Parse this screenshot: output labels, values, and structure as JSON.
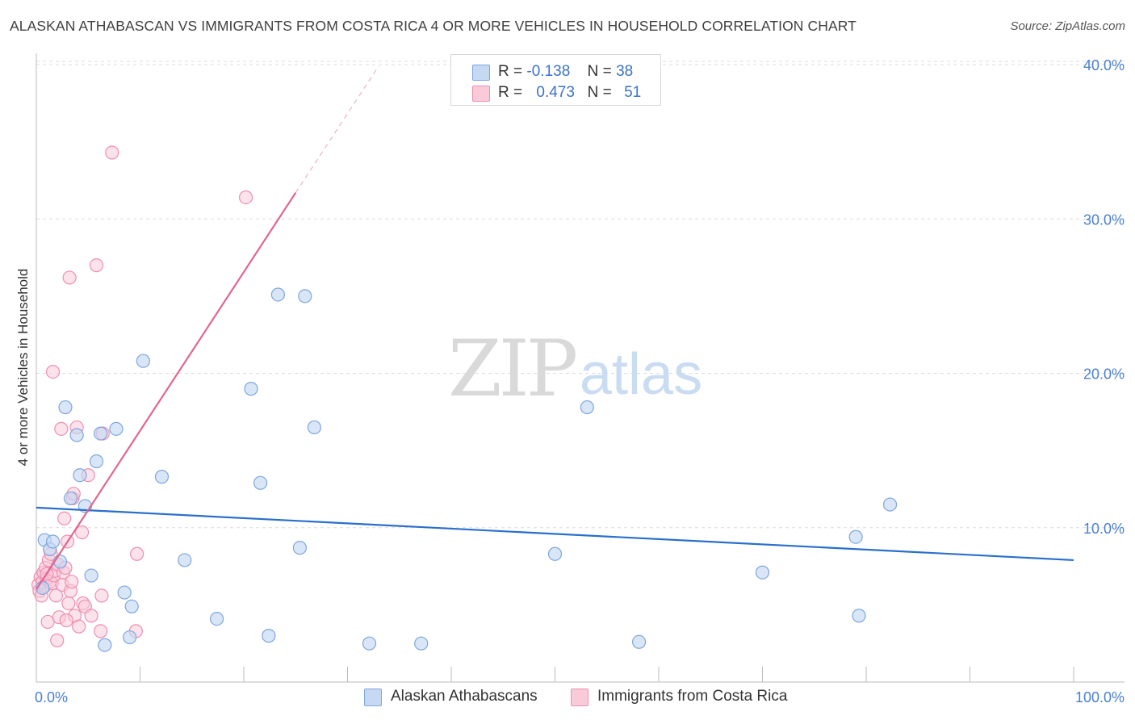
{
  "header": {
    "title": "ALASKAN ATHABASCAN VS IMMIGRANTS FROM COSTA RICA 4 OR MORE VEHICLES IN HOUSEHOLD CORRELATION CHART",
    "source": "Source: ZipAtlas.com"
  },
  "watermark": {
    "zip": "ZIP",
    "atlas": "atlas"
  },
  "legend": {
    "rows": [
      {
        "r_label": "R =",
        "r_value": "-0.138",
        "n_label": "N =",
        "n_value": "38",
        "color": "#a9c6ef"
      },
      {
        "r_label": "R =",
        "r_value": "0.473",
        "n_label": "N =",
        "n_value": "51",
        "color": "#f7b6cb"
      }
    ]
  },
  "colors": {
    "blue_fill": "#c5d9f3",
    "blue_stroke": "#7ea6de",
    "blue_line": "#2a6fcb",
    "pink_fill": "#f9cbd9",
    "pink_stroke": "#ee8fb0",
    "pink_line": "#e2668f"
  },
  "chart_data": {
    "type": "scatter",
    "title": "ALASKAN ATHABASCAN VS IMMIGRANTS FROM COSTA RICA 4 OR MORE VEHICLES IN HOUSEHOLD CORRELATION CHART",
    "xlabel": "",
    "ylabel": "4 or more Vehicles in Household",
    "xlim": [
      0,
      100
    ],
    "ylim": [
      0,
      40
    ],
    "x_tick_labels": [
      "0.0%",
      "100.0%"
    ],
    "y_ticks": [
      10,
      20,
      30,
      40
    ],
    "y_tick_labels": [
      "10.0%",
      "20.0%",
      "30.0%",
      "40.0%"
    ],
    "grid": true,
    "legend_position": "top-center",
    "series": [
      {
        "name": "Alaskan Athabascans",
        "r": -0.138,
        "n": 38,
        "trend": {
          "x": [
            0,
            100
          ],
          "y": [
            11.3,
            7.9
          ]
        },
        "points": [
          [
            0.6,
            6.1
          ],
          [
            0.8,
            9.2
          ],
          [
            1.3,
            8.6
          ],
          [
            1.6,
            9.1
          ],
          [
            2.3,
            7.8
          ],
          [
            2.8,
            17.8
          ],
          [
            3.3,
            11.9
          ],
          [
            3.9,
            16.0
          ],
          [
            4.2,
            13.4
          ],
          [
            4.7,
            11.4
          ],
          [
            5.3,
            6.9
          ],
          [
            5.8,
            14.3
          ],
          [
            6.2,
            16.1
          ],
          [
            6.6,
            2.4
          ],
          [
            7.7,
            16.4
          ],
          [
            8.5,
            5.8
          ],
          [
            9.0,
            2.9
          ],
          [
            9.2,
            4.9
          ],
          [
            10.3,
            20.8
          ],
          [
            12.1,
            13.3
          ],
          [
            14.3,
            7.9
          ],
          [
            17.4,
            4.1
          ],
          [
            20.7,
            19.0
          ],
          [
            21.6,
            12.9
          ],
          [
            22.4,
            3.0
          ],
          [
            23.3,
            25.1
          ],
          [
            25.4,
            8.7
          ],
          [
            25.9,
            25.0
          ],
          [
            26.8,
            16.5
          ],
          [
            32.1,
            2.5
          ],
          [
            37.1,
            2.5
          ],
          [
            50.0,
            8.3
          ],
          [
            53.1,
            17.8
          ],
          [
            58.1,
            2.6
          ],
          [
            70.0,
            7.1
          ],
          [
            79.0,
            9.4
          ],
          [
            79.3,
            4.3
          ],
          [
            82.3,
            11.5
          ]
        ]
      },
      {
        "name": "Immigrants from Costa Rica",
        "r": 0.473,
        "n": 51,
        "trend": {
          "x": [
            0,
            25
          ],
          "y": [
            6.0,
            31.7
          ]
        },
        "trend_extension": {
          "x": [
            25,
            33
          ],
          "y": [
            31.7,
            39.9
          ]
        },
        "points": [
          [
            0.2,
            6.3
          ],
          [
            0.3,
            5.9
          ],
          [
            0.4,
            6.8
          ],
          [
            0.5,
            5.6
          ],
          [
            0.6,
            6.5
          ],
          [
            0.7,
            7.1
          ],
          [
            0.8,
            6.2
          ],
          [
            0.9,
            7.4
          ],
          [
            1.0,
            6.7
          ],
          [
            1.1,
            3.9
          ],
          [
            1.2,
            7.9
          ],
          [
            1.3,
            6.5
          ],
          [
            1.4,
            8.3
          ],
          [
            1.5,
            6.4
          ],
          [
            1.6,
            20.1
          ],
          [
            1.7,
            6.9
          ],
          [
            1.8,
            7.2
          ],
          [
            1.9,
            5.6
          ],
          [
            2.0,
            2.7
          ],
          [
            2.1,
            7.6
          ],
          [
            2.2,
            4.2
          ],
          [
            2.4,
            16.4
          ],
          [
            2.5,
            6.3
          ],
          [
            2.6,
            7.1
          ],
          [
            2.7,
            10.6
          ],
          [
            2.8,
            7.4
          ],
          [
            3.0,
            9.1
          ],
          [
            3.1,
            5.1
          ],
          [
            3.2,
            26.2
          ],
          [
            3.3,
            5.9
          ],
          [
            3.4,
            6.5
          ],
          [
            3.5,
            11.9
          ],
          [
            3.6,
            12.2
          ],
          [
            3.7,
            4.3
          ],
          [
            3.9,
            16.5
          ],
          [
            4.1,
            3.6
          ],
          [
            4.4,
            9.7
          ],
          [
            4.5,
            5.1
          ],
          [
            4.7,
            4.9
          ],
          [
            5.0,
            13.4
          ],
          [
            5.3,
            4.3
          ],
          [
            5.8,
            27.0
          ],
          [
            6.2,
            3.3
          ],
          [
            6.3,
            5.6
          ],
          [
            6.4,
            16.1
          ],
          [
            7.3,
            34.3
          ],
          [
            9.6,
            3.3
          ],
          [
            9.7,
            8.3
          ],
          [
            20.2,
            31.4
          ],
          [
            2.9,
            4.0
          ],
          [
            1.0,
            7.0
          ]
        ]
      }
    ]
  },
  "bottom_legend": {
    "items": [
      {
        "label": "Alaskan Athabascans"
      },
      {
        "label": "Immigrants from Costa Rica"
      }
    ]
  }
}
